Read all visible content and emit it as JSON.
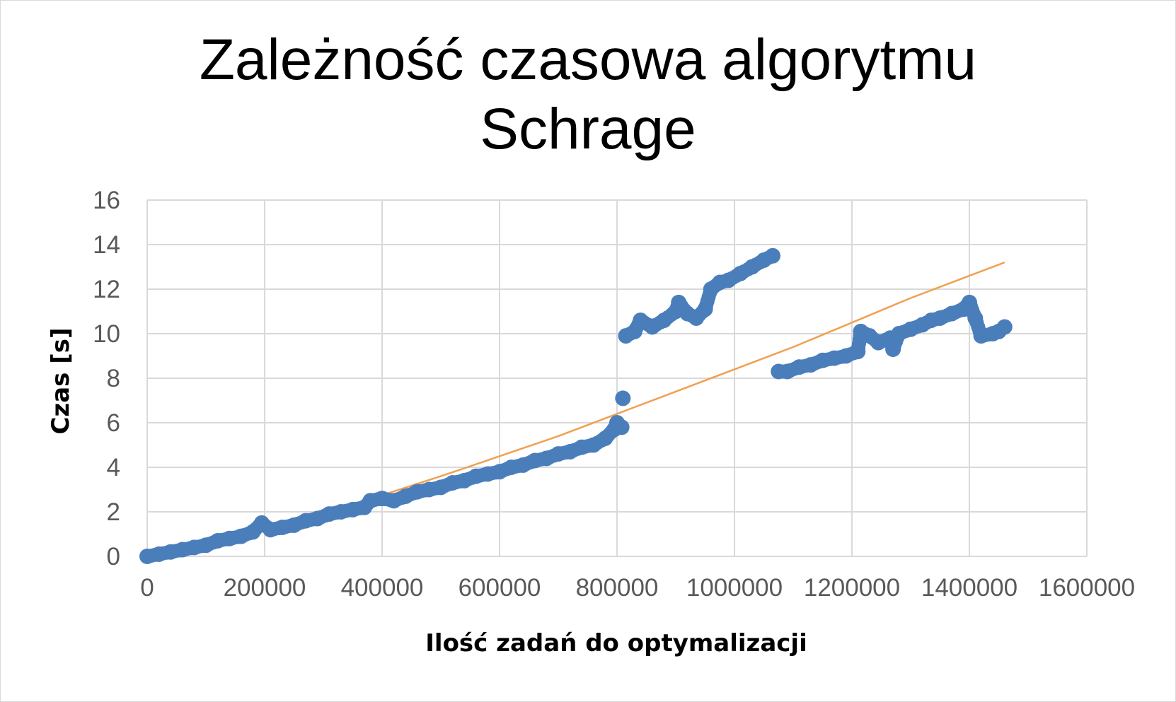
{
  "chart_data": {
    "type": "scatter",
    "title_lines": [
      "Zależność czasowa algorytmu",
      "Schrage"
    ],
    "xlabel": "Ilość zadań do optymalizacji",
    "ylabel": "Czas [s]",
    "xlim": [
      0,
      1600000
    ],
    "ylim": [
      0,
      16
    ],
    "x_ticks": [
      "0",
      "200000",
      "400000",
      "600000",
      "800000",
      "1000000",
      "1200000",
      "1400000",
      "1600000"
    ],
    "y_ticks": [
      "0",
      "2",
      "4",
      "6",
      "8",
      "10",
      "12",
      "14",
      "16"
    ],
    "grid": true,
    "legend": "none",
    "colors": {
      "points": "#4a7ebb",
      "trend": "#f0a050",
      "grid": "#d9d9d9",
      "tick_text": "#595959"
    },
    "series": [
      {
        "kind": "scatter",
        "points": [
          [
            0,
            0.0
          ],
          [
            20000,
            0.1
          ],
          [
            40000,
            0.2
          ],
          [
            60000,
            0.3
          ],
          [
            80000,
            0.4
          ],
          [
            100000,
            0.5
          ],
          [
            120000,
            0.7
          ],
          [
            140000,
            0.8
          ],
          [
            160000,
            0.9
          ],
          [
            180000,
            1.1
          ],
          [
            195000,
            1.5
          ],
          [
            210000,
            1.2
          ],
          [
            230000,
            1.3
          ],
          [
            250000,
            1.4
          ],
          [
            270000,
            1.6
          ],
          [
            290000,
            1.7
          ],
          [
            310000,
            1.9
          ],
          [
            330000,
            2.0
          ],
          [
            350000,
            2.1
          ],
          [
            370000,
            2.2
          ],
          [
            380000,
            2.5
          ],
          [
            400000,
            2.6
          ],
          [
            420000,
            2.5
          ],
          [
            440000,
            2.7
          ],
          [
            460000,
            2.9
          ],
          [
            480000,
            3.0
          ],
          [
            500000,
            3.1
          ],
          [
            520000,
            3.3
          ],
          [
            540000,
            3.4
          ],
          [
            560000,
            3.6
          ],
          [
            580000,
            3.7
          ],
          [
            600000,
            3.8
          ],
          [
            620000,
            4.0
          ],
          [
            640000,
            4.1
          ],
          [
            660000,
            4.3
          ],
          [
            680000,
            4.4
          ],
          [
            700000,
            4.6
          ],
          [
            720000,
            4.7
          ],
          [
            740000,
            4.9
          ],
          [
            760000,
            5.0
          ],
          [
            780000,
            5.3
          ],
          [
            795000,
            5.7
          ],
          [
            800000,
            6.0
          ],
          [
            808000,
            5.8
          ],
          [
            810000,
            7.1
          ],
          [
            815000,
            9.9
          ],
          [
            830000,
            10.1
          ],
          [
            840000,
            10.6
          ],
          [
            860000,
            10.3
          ],
          [
            880000,
            10.6
          ],
          [
            900000,
            11.0
          ],
          [
            905000,
            11.4
          ],
          [
            920000,
            10.9
          ],
          [
            935000,
            10.7
          ],
          [
            950000,
            11.1
          ],
          [
            960000,
            12.0
          ],
          [
            975000,
            12.3
          ],
          [
            990000,
            12.4
          ],
          [
            1010000,
            12.7
          ],
          [
            1030000,
            13.0
          ],
          [
            1050000,
            13.3
          ],
          [
            1065000,
            13.5
          ],
          [
            1075000,
            8.3
          ],
          [
            1090000,
            8.3
          ],
          [
            1110000,
            8.5
          ],
          [
            1130000,
            8.6
          ],
          [
            1150000,
            8.8
          ],
          [
            1170000,
            8.9
          ],
          [
            1190000,
            9.0
          ],
          [
            1210000,
            9.2
          ],
          [
            1215000,
            10.1
          ],
          [
            1230000,
            9.9
          ],
          [
            1245000,
            9.6
          ],
          [
            1265000,
            9.8
          ],
          [
            1270000,
            9.3
          ],
          [
            1280000,
            10.0
          ],
          [
            1300000,
            10.2
          ],
          [
            1320000,
            10.4
          ],
          [
            1335000,
            10.6
          ],
          [
            1350000,
            10.7
          ],
          [
            1370000,
            10.9
          ],
          [
            1390000,
            11.1
          ],
          [
            1400000,
            11.4
          ],
          [
            1410000,
            10.7
          ],
          [
            1420000,
            9.9
          ],
          [
            1440000,
            10.0
          ],
          [
            1450000,
            10.1
          ],
          [
            1460000,
            10.3
          ]
        ]
      },
      {
        "kind": "trendline",
        "points": [
          [
            0,
            0.0
          ],
          [
            100000,
            0.55
          ],
          [
            200000,
            1.2
          ],
          [
            300000,
            1.95
          ],
          [
            400000,
            2.75
          ],
          [
            500000,
            3.6
          ],
          [
            600000,
            4.5
          ],
          [
            700000,
            5.4
          ],
          [
            800000,
            6.4
          ],
          [
            900000,
            7.4
          ],
          [
            1000000,
            8.4
          ],
          [
            1100000,
            9.4
          ],
          [
            1200000,
            10.5
          ],
          [
            1300000,
            11.6
          ],
          [
            1400000,
            12.6
          ],
          [
            1460000,
            13.2
          ]
        ]
      }
    ]
  }
}
